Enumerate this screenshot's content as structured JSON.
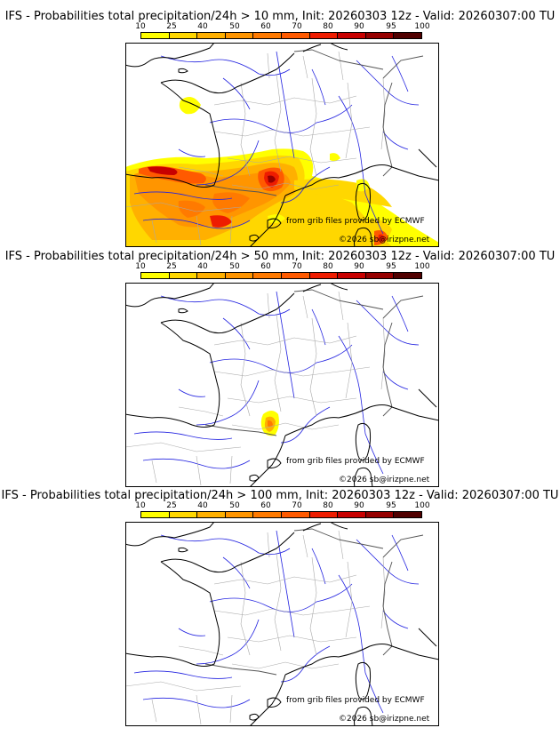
{
  "colorbar": {
    "ticks": [
      "10",
      "25",
      "40",
      "50",
      "60",
      "70",
      "80",
      "90",
      "95",
      "100"
    ],
    "colors": [
      "#ffff00",
      "#ffd700",
      "#ffb000",
      "#ff9500",
      "#ff7a00",
      "#ff5a00",
      "#ee1c00",
      "#c80000",
      "#960000",
      "#500000"
    ]
  },
  "panels": [
    {
      "title": "IFS - Probabilities total precipitation/24h > 10 mm, Init: 20260303 12z - Valid: 20260307:00 TU",
      "credit_line1": "from grib files provided by ECMWF",
      "credit_line2": "©2026 sb@irizpne.net",
      "field": "p10"
    },
    {
      "title": "IFS - Probabilities total precipitation/24h > 50 mm, Init: 20260303 12z - Valid: 20260307:00 TU",
      "credit_line1": "from grib files provided by ECMWF",
      "credit_line2": "©2026 sb@irizpne.net",
      "field": "p50"
    },
    {
      "title": "IFS - Probabilities total precipitation/24h > 100 mm, Init: 20260303 12z - Valid: 20260307:00 TU",
      "credit_line1": "from grib files provided by ECMWF",
      "credit_line2": "©2026 sb@irizpne.net",
      "field": "p100"
    }
  ],
  "map_colors": {
    "coast": "#000000",
    "borders": "#a9a9a9",
    "rivers": "#2323e0"
  }
}
